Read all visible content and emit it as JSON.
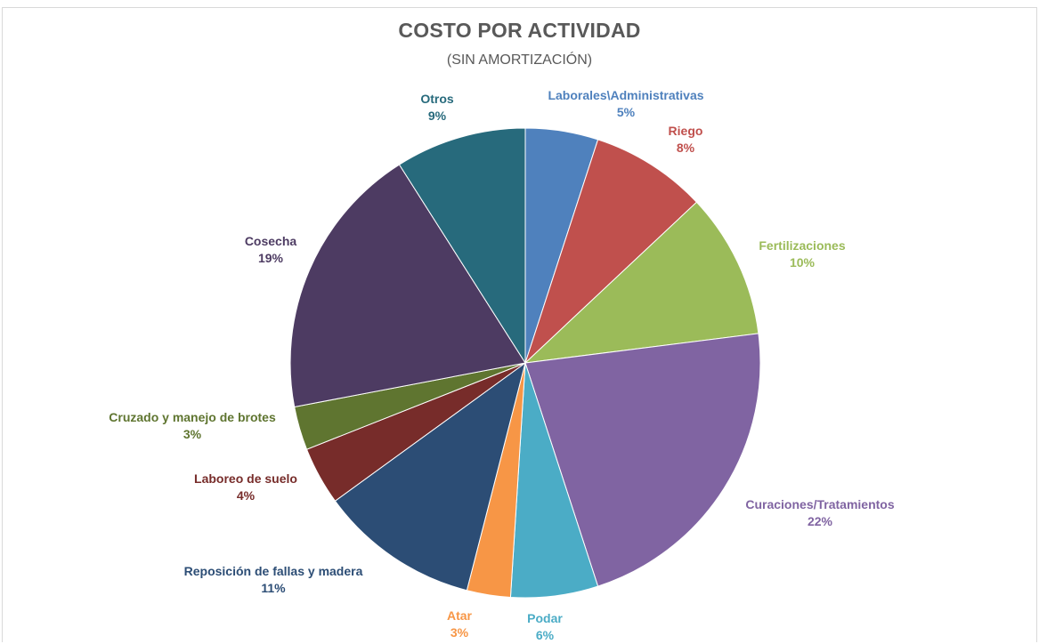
{
  "chart_data": {
    "type": "pie",
    "title": "COSTO POR ACTIVIDAD",
    "subtitle": "(SIN AMORTIZACIÓN)",
    "slices": [
      {
        "label": "Laborales\\Administrativas",
        "value": 5,
        "pct_label": "5%",
        "color": "#4f81bd"
      },
      {
        "label": "Riego",
        "value": 8,
        "pct_label": "8%",
        "color": "#c0504d"
      },
      {
        "label": "Fertilizaciones",
        "value": 10,
        "pct_label": "10%",
        "color": "#9bbb59"
      },
      {
        "label": "Curaciones/Tratamientos",
        "value": 22,
        "pct_label": "22%",
        "color": "#8064a2"
      },
      {
        "label": "Podar",
        "value": 6,
        "pct_label": "6%",
        "color": "#4bacc6"
      },
      {
        "label": "Atar",
        "value": 3,
        "pct_label": "3%",
        "color": "#f79646"
      },
      {
        "label": "Reposición de fallas y madera",
        "value": 11,
        "pct_label": "11%",
        "color": "#2c4d75"
      },
      {
        "label": "Laboreo de suelo",
        "value": 4,
        "pct_label": "4%",
        "color": "#772c2a"
      },
      {
        "label": "Cruzado y manejo de brotes",
        "value": 3,
        "pct_label": "3%",
        "color": "#5f7530"
      },
      {
        "label": "Cosecha",
        "value": 19,
        "pct_label": "19%",
        "color": "#4d3b62"
      },
      {
        "label": "Otros",
        "value": 9,
        "pct_label": "9%",
        "color": "#276a7c"
      }
    ],
    "legend": "none"
  }
}
